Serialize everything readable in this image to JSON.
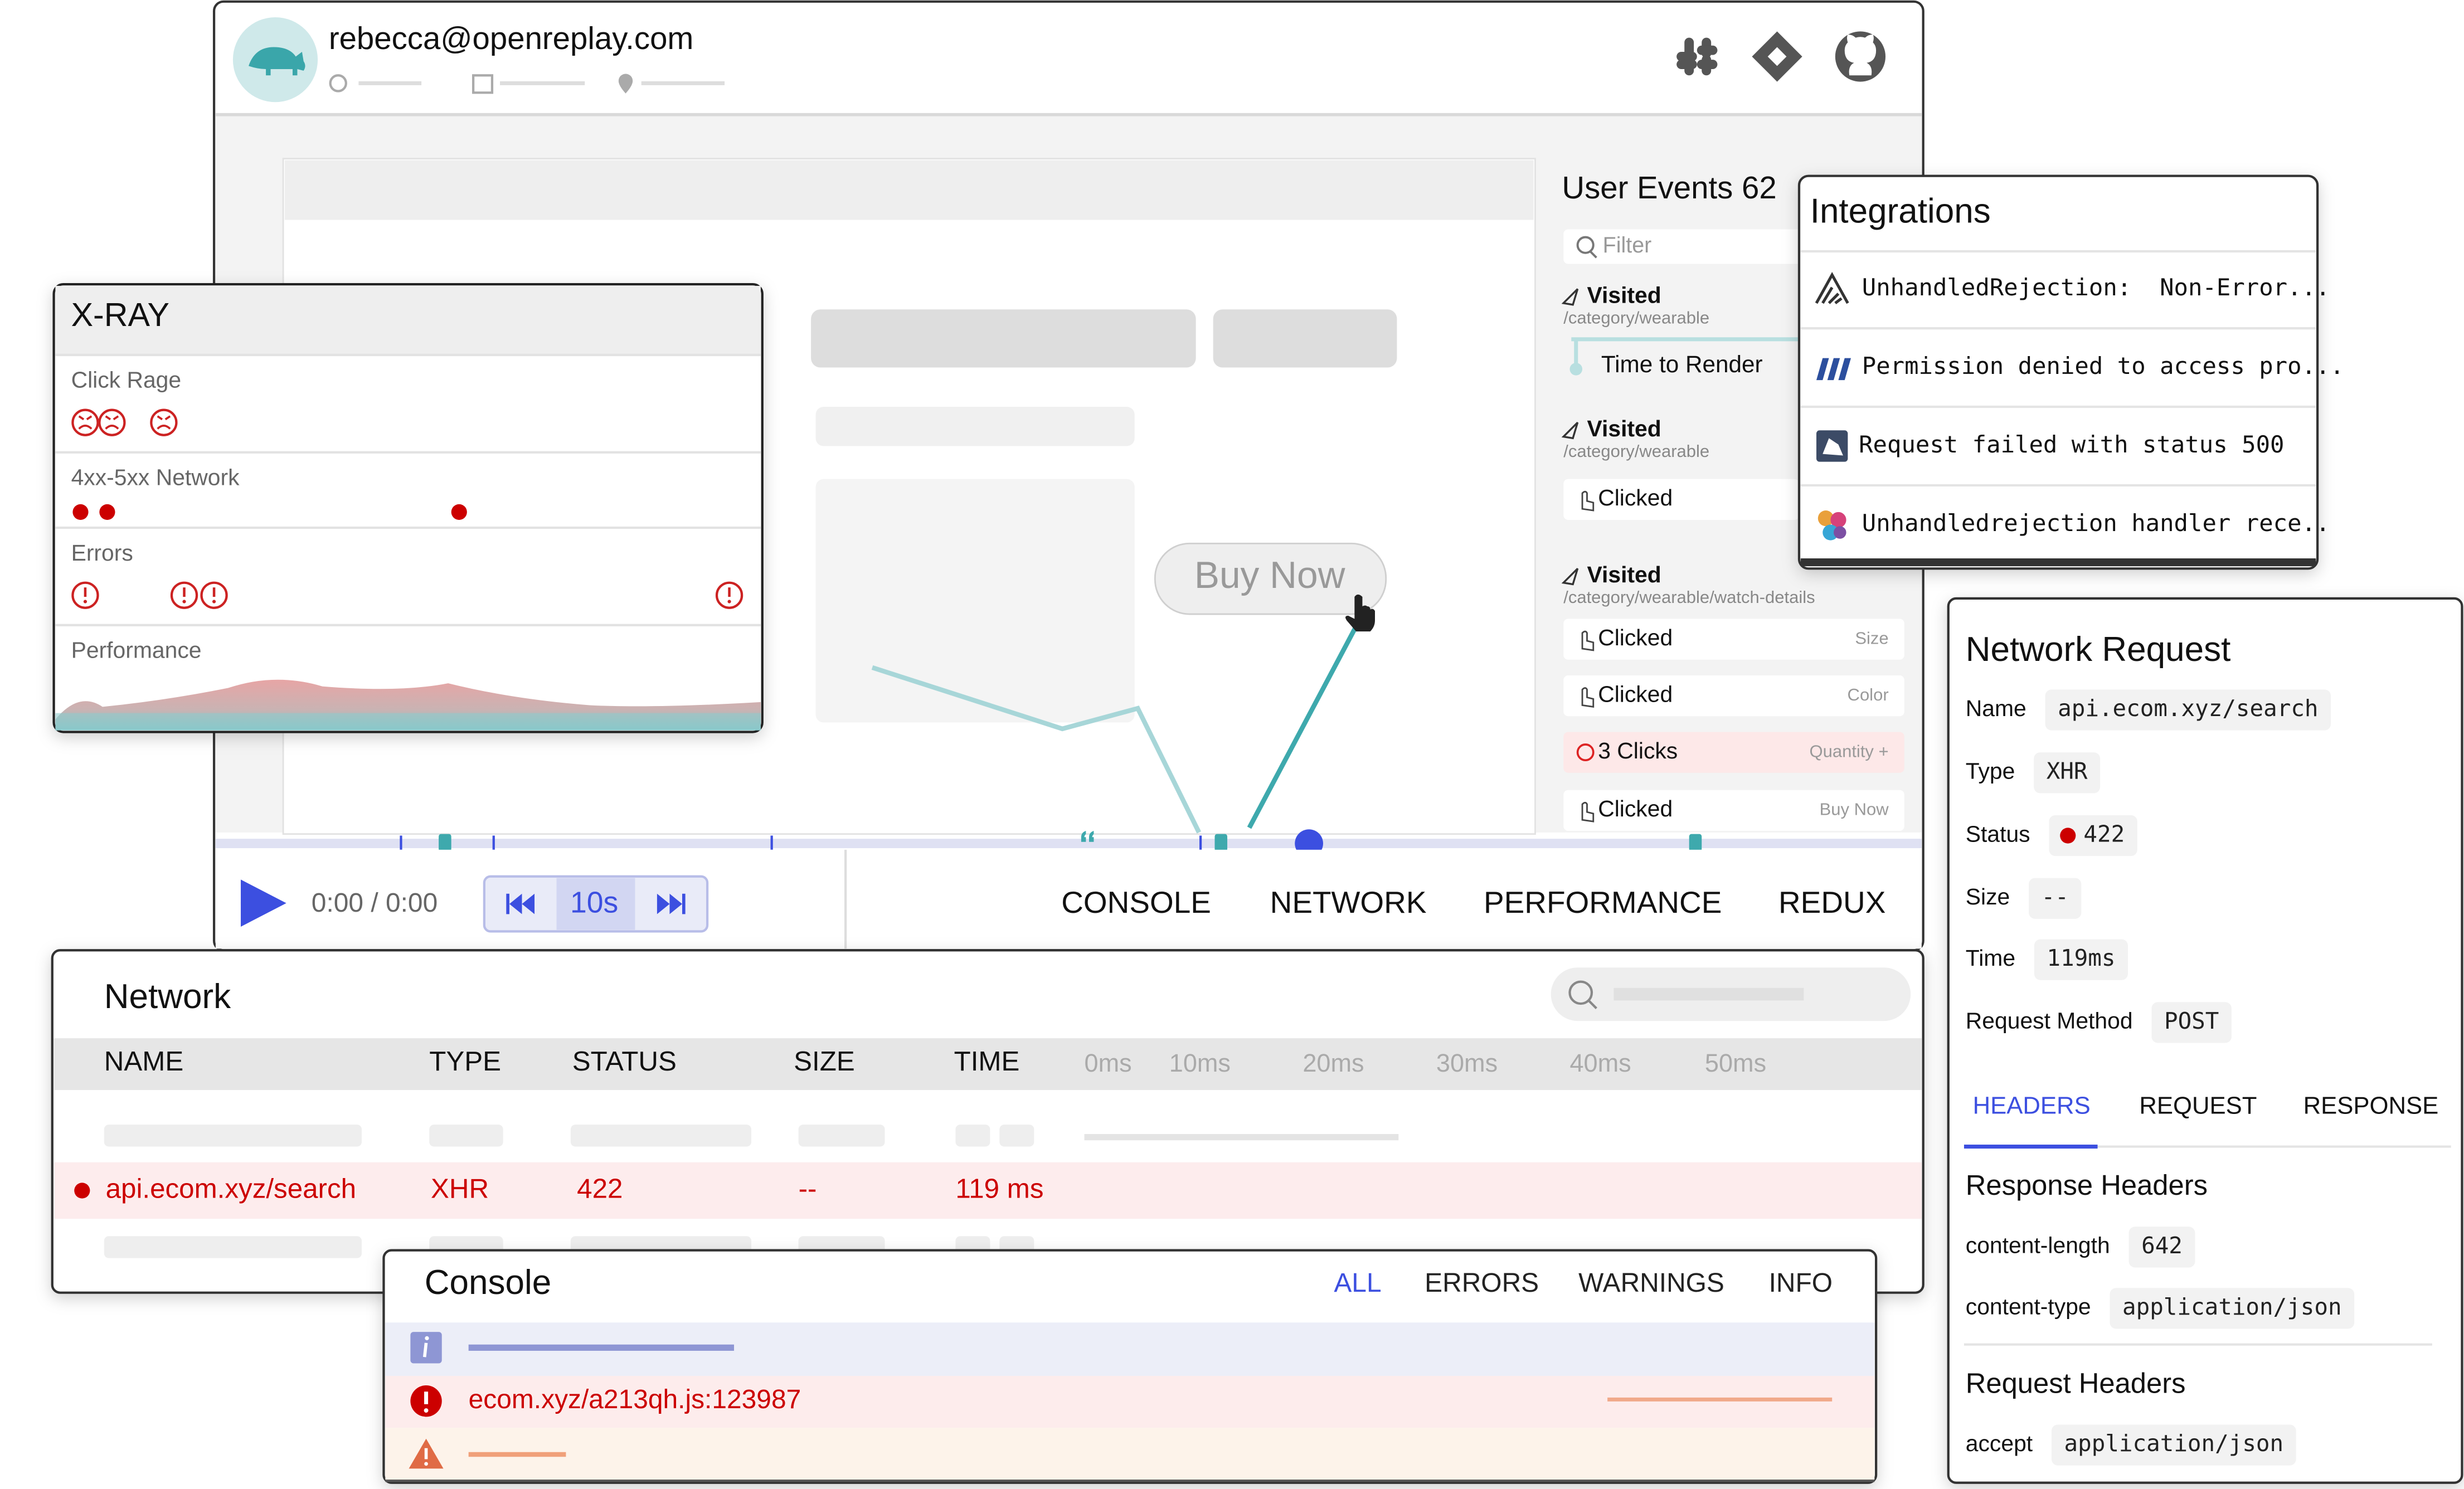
{
  "header": {
    "email": "rebecca@openreplay.com"
  },
  "xray": {
    "title": "X-RAY",
    "rows": [
      "Click Rage",
      "4xx-5xx Network",
      "Errors",
      "Performance"
    ]
  },
  "page_mock": {
    "button": "Buy Now"
  },
  "user_events": {
    "title": "User Events 62",
    "filter": "Filter",
    "items": [
      {
        "label": "Visited",
        "path": "/category/wearable"
      },
      {
        "label": "Time to Render"
      },
      {
        "label": "Visited",
        "path": "/category/wearable"
      },
      {
        "label": "Clicked"
      },
      {
        "label": "Visited",
        "path": "/category/wearable/watch-details"
      },
      {
        "label": "Clicked",
        "detail": "Size"
      },
      {
        "label": "Clicked",
        "detail": "Color"
      },
      {
        "label": "3 Clicks",
        "detail": "Quantity +"
      },
      {
        "label": "Clicked",
        "detail": "Buy Now"
      }
    ]
  },
  "integrations": {
    "title": "Integrations",
    "items": [
      "UnhandledRejection:  Non-Error...",
      "Permission denied to access pro...",
      "Request failed with status 500",
      "Unhandledrejection handler rece.."
    ]
  },
  "player": {
    "time": "0:00 / 0:00",
    "skip": "10s",
    "tabs": [
      "CONSOLE",
      "NETWORK",
      "PERFORMANCE",
      "REDUX"
    ]
  },
  "network": {
    "title": "Network",
    "columns": [
      "NAME",
      "TYPE",
      "STATUS",
      "SIZE",
      "TIME"
    ],
    "timeline": [
      "0ms",
      "10ms",
      "20ms",
      "30ms",
      "40ms",
      "50ms"
    ],
    "row": [
      "api.ecom.xyz/search",
      "XHR",
      "422",
      "--",
      "119 ms"
    ]
  },
  "console": {
    "title": "Console",
    "tabs": [
      "ALL",
      "ERRORS",
      "WARNINGS",
      "INFO"
    ],
    "error": "ecom.xyz/a213qh.js:123987"
  },
  "network_request": {
    "title": "Network Request",
    "fields": [
      {
        "label": "Name",
        "value": "api.ecom.xyz/search"
      },
      {
        "label": "Type",
        "value": "XHR"
      },
      {
        "label": "Status",
        "value": "422"
      },
      {
        "label": "Size",
        "value": "--"
      },
      {
        "label": "Time",
        "value": "119ms"
      },
      {
        "label": "Request Method",
        "value": "POST"
      }
    ],
    "tabs": [
      "HEADERS",
      "REQUEST",
      "RESPONSE"
    ],
    "response_headers": {
      "title": "Response Headers",
      "fields": [
        {
          "label": "content-length",
          "value": "642"
        },
        {
          "label": "content-type",
          "value": "application/json"
        }
      ]
    },
    "request_headers": {
      "title": "Request Headers",
      "fields": [
        {
          "label": "accept",
          "value": "application/json"
        }
      ]
    }
  }
}
